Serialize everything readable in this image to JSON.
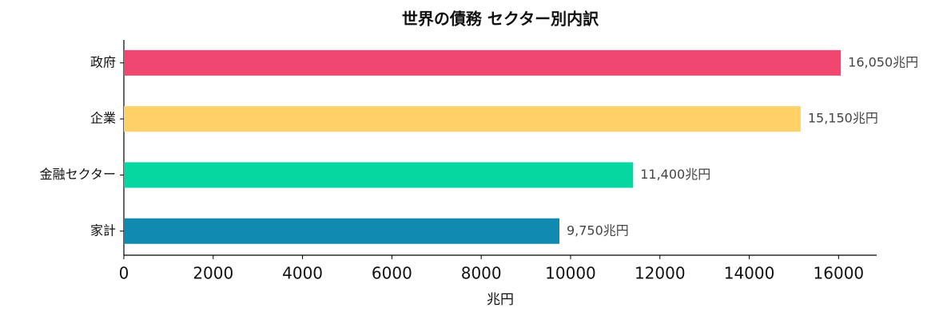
{
  "chart_data": {
    "type": "barh",
    "title": "世界の債務 セクター別内訳",
    "categories": [
      "政府",
      "企業",
      "金融セクター",
      "家計"
    ],
    "values": [
      16050,
      15150,
      11400,
      9750
    ],
    "value_labels": [
      "16,050兆円",
      "15,150兆円",
      "11,400兆円",
      "9,750兆円"
    ],
    "colors": [
      "#ef476f",
      "#ffd166",
      "#06d6a0",
      "#118ab2"
    ],
    "xlabel": "兆円",
    "xlim": [
      0,
      16852.5
    ],
    "xticks": [
      0,
      2000,
      4000,
      6000,
      8000,
      10000,
      12000,
      14000,
      16000
    ]
  }
}
